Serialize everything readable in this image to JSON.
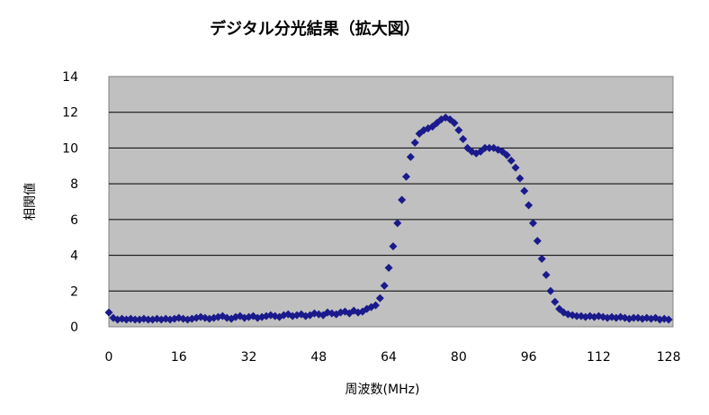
{
  "chart_data": {
    "type": "scatter",
    "title": "デジタル分光結果（拡大図）",
    "xlabel": "周波数(MHz)",
    "ylabel": "相関値",
    "xlim": [
      0,
      129
    ],
    "ylim": [
      0,
      14
    ],
    "xticks": [
      0,
      16,
      32,
      48,
      64,
      80,
      96,
      112,
      128
    ],
    "yticks": [
      0,
      2,
      4,
      6,
      8,
      10,
      12,
      14
    ],
    "grid": "horizontal",
    "plot_background": "#c0c0c0",
    "marker": "diamond",
    "marker_color": "#1a1a8c",
    "series": [
      {
        "x": [
          0,
          1,
          2,
          3,
          4,
          5,
          6,
          7,
          8,
          9,
          10,
          11,
          12,
          13,
          14,
          15,
          16,
          17,
          18,
          19,
          20,
          21,
          22,
          23,
          24,
          25,
          26,
          27,
          28,
          29,
          30,
          31,
          32,
          33,
          34,
          35,
          36,
          37,
          38,
          39,
          40,
          41,
          42,
          43,
          44,
          45,
          46,
          47,
          48,
          49,
          50,
          51,
          52,
          53,
          54,
          55,
          56,
          57,
          58,
          59,
          60,
          61,
          62,
          63,
          64,
          65,
          66,
          67,
          68,
          69,
          70,
          71,
          72,
          73,
          74,
          75,
          76,
          77,
          78,
          79,
          80,
          81,
          82,
          83,
          84,
          85,
          86,
          87,
          88,
          89,
          90,
          91,
          92,
          93,
          94,
          95,
          96,
          97,
          98,
          99,
          100,
          101,
          102,
          103,
          104,
          105,
          106,
          107,
          108,
          109,
          110,
          111,
          112,
          113,
          114,
          115,
          116,
          117,
          118,
          119,
          120,
          121,
          122,
          123,
          124,
          125,
          126,
          127,
          128
        ],
        "y": [
          0.8,
          0.5,
          0.4,
          0.45,
          0.4,
          0.45,
          0.4,
          0.4,
          0.45,
          0.4,
          0.4,
          0.45,
          0.4,
          0.45,
          0.4,
          0.45,
          0.5,
          0.45,
          0.4,
          0.45,
          0.5,
          0.55,
          0.5,
          0.45,
          0.5,
          0.55,
          0.6,
          0.5,
          0.45,
          0.55,
          0.6,
          0.5,
          0.55,
          0.6,
          0.5,
          0.55,
          0.6,
          0.65,
          0.6,
          0.55,
          0.65,
          0.7,
          0.6,
          0.65,
          0.7,
          0.6,
          0.65,
          0.75,
          0.7,
          0.65,
          0.8,
          0.75,
          0.7,
          0.8,
          0.85,
          0.75,
          0.9,
          0.8,
          0.85,
          1.0,
          1.1,
          1.2,
          1.6,
          2.3,
          3.3,
          4.5,
          5.8,
          7.1,
          8.4,
          9.5,
          10.3,
          10.8,
          11.0,
          11.1,
          11.2,
          11.4,
          11.6,
          11.7,
          11.6,
          11.4,
          11.0,
          10.5,
          10.0,
          9.8,
          9.7,
          9.8,
          10.0,
          10.0,
          10.0,
          9.9,
          9.8,
          9.6,
          9.3,
          8.9,
          8.3,
          7.6,
          6.8,
          5.8,
          4.8,
          3.8,
          2.9,
          2.0,
          1.4,
          1.0,
          0.8,
          0.7,
          0.65,
          0.6,
          0.6,
          0.55,
          0.6,
          0.55,
          0.6,
          0.55,
          0.5,
          0.55,
          0.5,
          0.55,
          0.5,
          0.45,
          0.5,
          0.5,
          0.45,
          0.5,
          0.45,
          0.5,
          0.4,
          0.45,
          0.4
        ]
      }
    ]
  }
}
